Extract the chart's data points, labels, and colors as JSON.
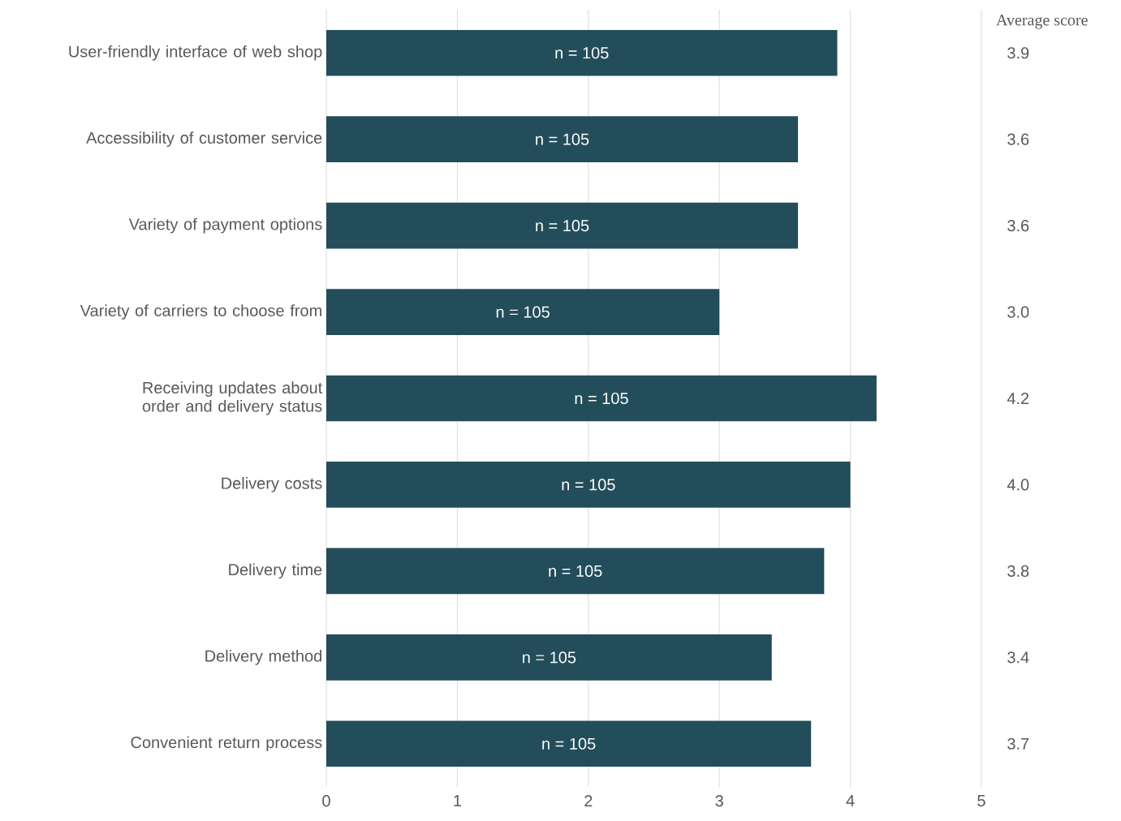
{
  "chart_data": {
    "type": "bar",
    "orientation": "horizontal",
    "categories": [
      "User-friendly interface of web shop",
      "Accessibility of customer service",
      "Variety of payment options",
      "Variety of carriers to choose from",
      "Receiving updates about order and delivery status",
      "Delivery costs",
      "Delivery time",
      "Delivery method",
      "Convenient return process"
    ],
    "values": [
      3.9,
      3.6,
      3.6,
      3.0,
      4.2,
      4.0,
      3.8,
      3.4,
      3.7
    ],
    "color": "#234d5a",
    "value_labels": [
      "3.9",
      "3.6",
      "3.6",
      "3.0",
      "4.2",
      "4.0",
      "3.8",
      "3.4",
      "3.7"
    ],
    "grid": "x",
    "xlim": [
      0,
      5
    ],
    "xticks": [
      0,
      1,
      2,
      3,
      4,
      5
    ],
    "annotations": [
      "Average score",
      "n = 105",
      "n = 105",
      "n = 105",
      "n = 105",
      "n = 105",
      "n = 105",
      "n = 105",
      "n = 105",
      "n = 105"
    ]
  }
}
